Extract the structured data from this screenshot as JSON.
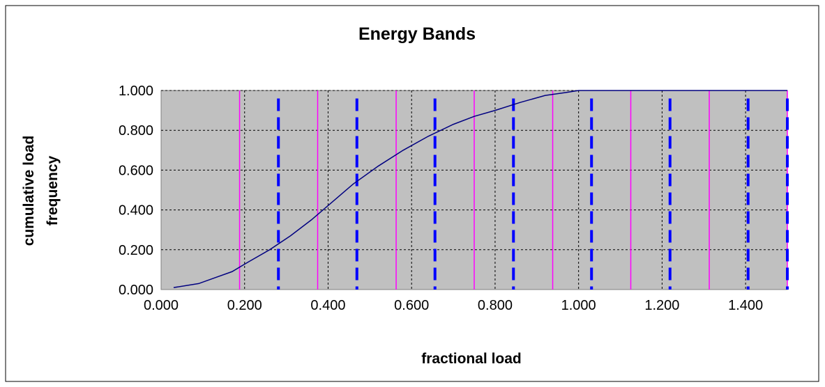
{
  "chart_data": {
    "type": "line",
    "title": "Energy Bands",
    "xlabel": "fractional load",
    "ylabel": [
      "cumulative load",
      "frequency"
    ],
    "xlim": [
      0,
      1.5
    ],
    "ylim": [
      0,
      1
    ],
    "x_ticks": [
      "0.000",
      "0.200",
      "0.400",
      "0.600",
      "0.800",
      "1.000",
      "1.200",
      "1.400"
    ],
    "x_tick_values": [
      0,
      0.2,
      0.4,
      0.6,
      0.8,
      1.0,
      1.2,
      1.4
    ],
    "y_ticks": [
      "0.000",
      "0.200",
      "0.400",
      "0.600",
      "0.800",
      "1.000"
    ],
    "y_tick_values": [
      0,
      0.2,
      0.4,
      0.6,
      0.8,
      1.0
    ],
    "grid": true,
    "plot_background": "#c0c0c0",
    "series": [
      {
        "kind": "line",
        "color": "#000080",
        "x": [
          0.03,
          0.09,
          0.13,
          0.17,
          0.21,
          0.26,
          0.31,
          0.36,
          0.41,
          0.46,
          0.52,
          0.58,
          0.64,
          0.7,
          0.75,
          0.8,
          0.86,
          0.92,
          0.97,
          1.0,
          1.05,
          1.2,
          1.35,
          1.5
        ],
        "y": [
          0.01,
          0.03,
          0.06,
          0.09,
          0.14,
          0.2,
          0.27,
          0.35,
          0.44,
          0.53,
          0.62,
          0.7,
          0.77,
          0.83,
          0.87,
          0.9,
          0.94,
          0.975,
          0.99,
          1.0,
          1.0,
          1.0,
          1.0,
          1.0
        ]
      },
      {
        "kind": "vlines",
        "style": "solid",
        "color": "#ff00ff",
        "x": [
          0.188,
          0.375,
          0.563,
          0.75,
          0.938,
          1.125,
          1.313,
          1.5
        ]
      },
      {
        "kind": "vlines",
        "style": "dashed",
        "color": "#0000ff",
        "x": [
          0.281,
          0.469,
          0.656,
          0.844,
          1.031,
          1.219,
          1.406,
          1.5
        ],
        "y_top": 0.96
      }
    ]
  }
}
